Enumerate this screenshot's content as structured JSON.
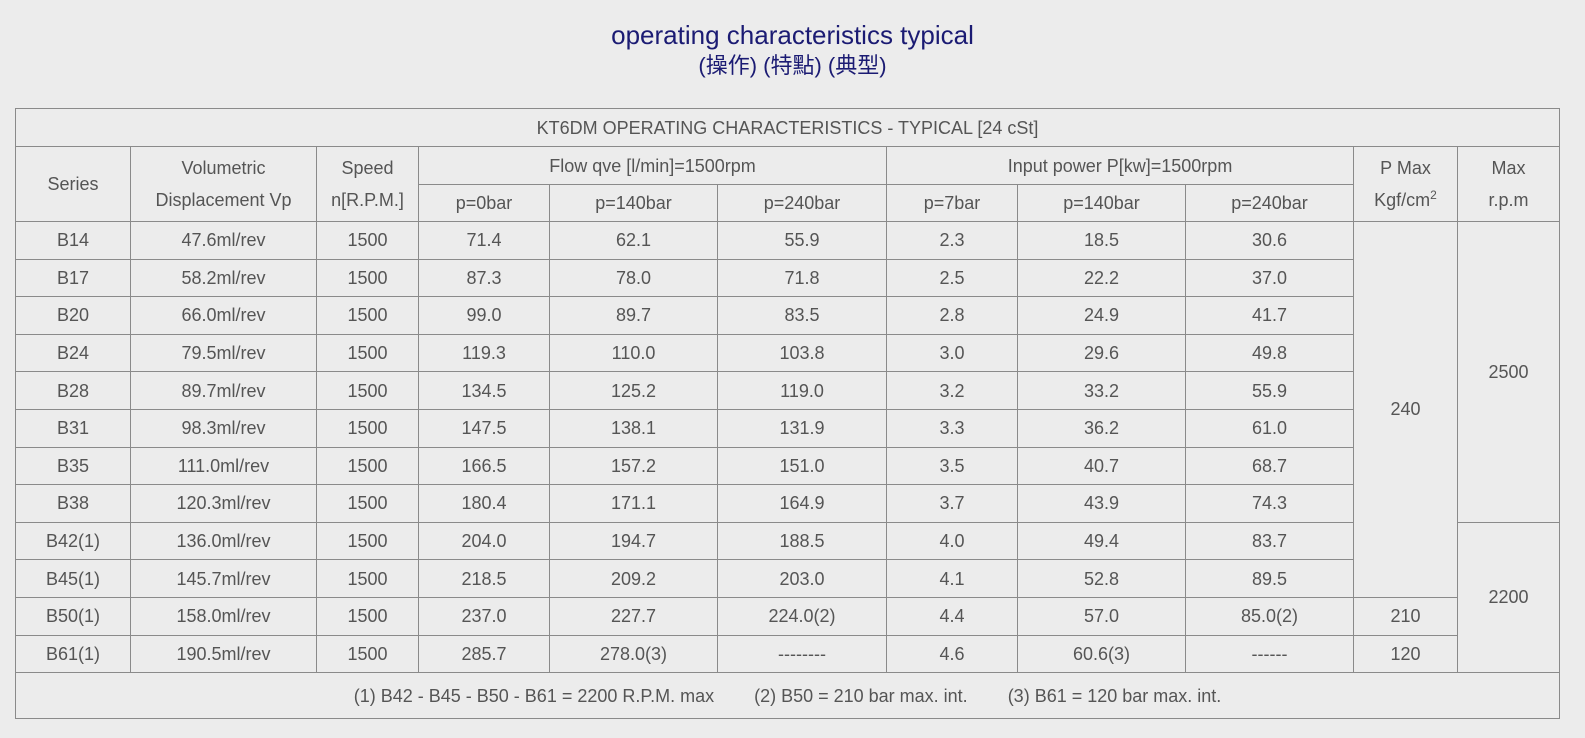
{
  "header": {
    "title": "operating characteristics typical",
    "subtitle": "(操作) (特點) (典型)"
  },
  "table": {
    "caption": "KT6DM OPERATING CHARACTERISTICS - TYPICAL [24 cSt]",
    "columns": {
      "series": "Series",
      "displacement": [
        "Volumetric",
        "Displacement Vp"
      ],
      "speed": [
        "Speed",
        "n[R.P.M.]"
      ],
      "flow": "Flow qve [l/min]=1500rpm",
      "flow_pressures": [
        "p=0bar",
        "p=140bar",
        "p=240bar"
      ],
      "power": "Input power P[kw]=1500rpm",
      "power_pressures": [
        "p=7bar",
        "p=140bar",
        "p=240bar"
      ],
      "p_max": [
        "P Max",
        "Kgf/cm",
        "2"
      ],
      "max_rpm": [
        "Max",
        "r.p.m"
      ]
    },
    "rows": [
      [
        "B14",
        "47.6ml/rev",
        "1500",
        "71.4",
        "62.1",
        "55.9",
        "2.3",
        "18.5",
        "30.6"
      ],
      [
        "B17",
        "58.2ml/rev",
        "1500",
        "87.3",
        "78.0",
        "71.8",
        "2.5",
        "22.2",
        "37.0"
      ],
      [
        "B20",
        "66.0ml/rev",
        "1500",
        "99.0",
        "89.7",
        "83.5",
        "2.8",
        "24.9",
        "41.7"
      ],
      [
        "B24",
        "79.5ml/rev",
        "1500",
        "119.3",
        "110.0",
        "103.8",
        "3.0",
        "29.6",
        "49.8"
      ],
      [
        "B28",
        "89.7ml/rev",
        "1500",
        "134.5",
        "125.2",
        "119.0",
        "3.2",
        "33.2",
        "55.9"
      ],
      [
        "B31",
        "98.3ml/rev",
        "1500",
        "147.5",
        "138.1",
        "131.9",
        "3.3",
        "36.2",
        "61.0"
      ],
      [
        "B35",
        "111.0ml/rev",
        "1500",
        "166.5",
        "157.2",
        "151.0",
        "3.5",
        "40.7",
        "68.7"
      ],
      [
        "B38",
        "120.3ml/rev",
        "1500",
        "180.4",
        "171.1",
        "164.9",
        "3.7",
        "43.9",
        "74.3"
      ],
      [
        "B42(1)",
        "136.0ml/rev",
        "1500",
        "204.0",
        "194.7",
        "188.5",
        "4.0",
        "49.4",
        "83.7"
      ],
      [
        "B45(1)",
        "145.7ml/rev",
        "1500",
        "218.5",
        "209.2",
        "203.0",
        "4.1",
        "52.8",
        "89.5"
      ],
      [
        "B50(1)",
        "158.0ml/rev",
        "1500",
        "237.0",
        "227.7",
        "224.0(2)",
        "4.4",
        "57.0",
        "85.0(2)"
      ],
      [
        "B61(1)",
        "190.5ml/rev",
        "1500",
        "285.7",
        "278.0(3)",
        "--------",
        "4.6",
        "60.6(3)",
        "------"
      ]
    ],
    "p_max": [
      "240",
      "210",
      "120"
    ],
    "max_rpm": [
      "2500",
      "2200"
    ],
    "footnotes": [
      "(1) B42 - B45 - B50 - B61 = 2200 R.P.M. max",
      "(2) B50 = 210 bar max. int.",
      "(3) B61 = 120 bar max. int."
    ]
  }
}
